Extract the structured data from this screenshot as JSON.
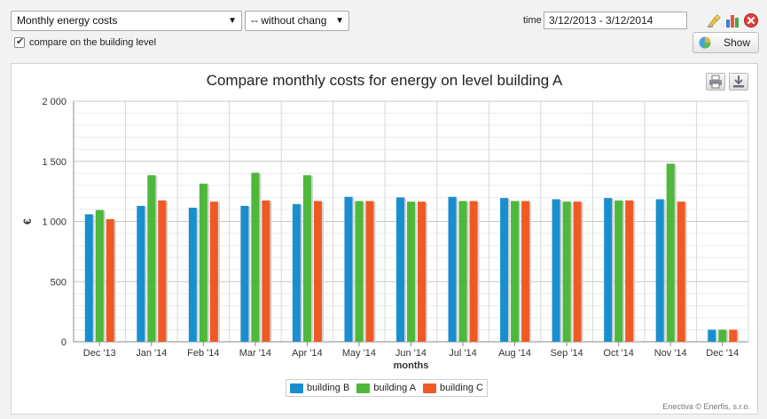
{
  "toolbar": {
    "metric_select": "Monthly energy costs",
    "change_select": "-- without chang",
    "compare_checkbox_label": "compare on the building level",
    "compare_checked": true,
    "time_label": "time",
    "time_value": "3/12/2013 - 3/12/2014",
    "show_label": "Show",
    "icons": [
      "chart-edit-icon",
      "bar-chart-icon",
      "close-icon"
    ]
  },
  "panel": {
    "print_icon": "print-icon",
    "download_icon": "download-icon",
    "credit": "Enectiva © Enerfis, s.r.o."
  },
  "chart_data": {
    "type": "bar",
    "title": "Compare monthly costs for energy on level building A",
    "xlabel": "months",
    "ylabel": "€",
    "ylim": [
      0,
      2000
    ],
    "yticks": [
      0,
      500,
      1000,
      1500,
      2000
    ],
    "ytick_labels": [
      "0",
      "500",
      "1 000",
      "1 500",
      "2 000"
    ],
    "categories": [
      "Dec '13",
      "Jan '14",
      "Feb '14",
      "Mar '14",
      "Apr '14",
      "May '14",
      "Jun '14",
      "Jul '14",
      "Aug '14",
      "Sep '14",
      "Oct '14",
      "Nov '14",
      "Dec '14"
    ],
    "series": [
      {
        "name": "building B",
        "color": "#1a8fd0",
        "values": [
          1060,
          1130,
          1115,
          1130,
          1145,
          1205,
          1200,
          1205,
          1195,
          1185,
          1195,
          1185,
          100
        ]
      },
      {
        "name": "building A",
        "color": "#4db83a",
        "values": [
          1095,
          1385,
          1315,
          1405,
          1385,
          1170,
          1165,
          1170,
          1170,
          1165,
          1175,
          1480,
          100
        ]
      },
      {
        "name": "building C",
        "color": "#ef5a24",
        "values": [
          1020,
          1175,
          1165,
          1175,
          1170,
          1170,
          1165,
          1170,
          1170,
          1165,
          1175,
          1165,
          100
        ]
      }
    ],
    "grid": true,
    "legend": "bottom-center"
  }
}
